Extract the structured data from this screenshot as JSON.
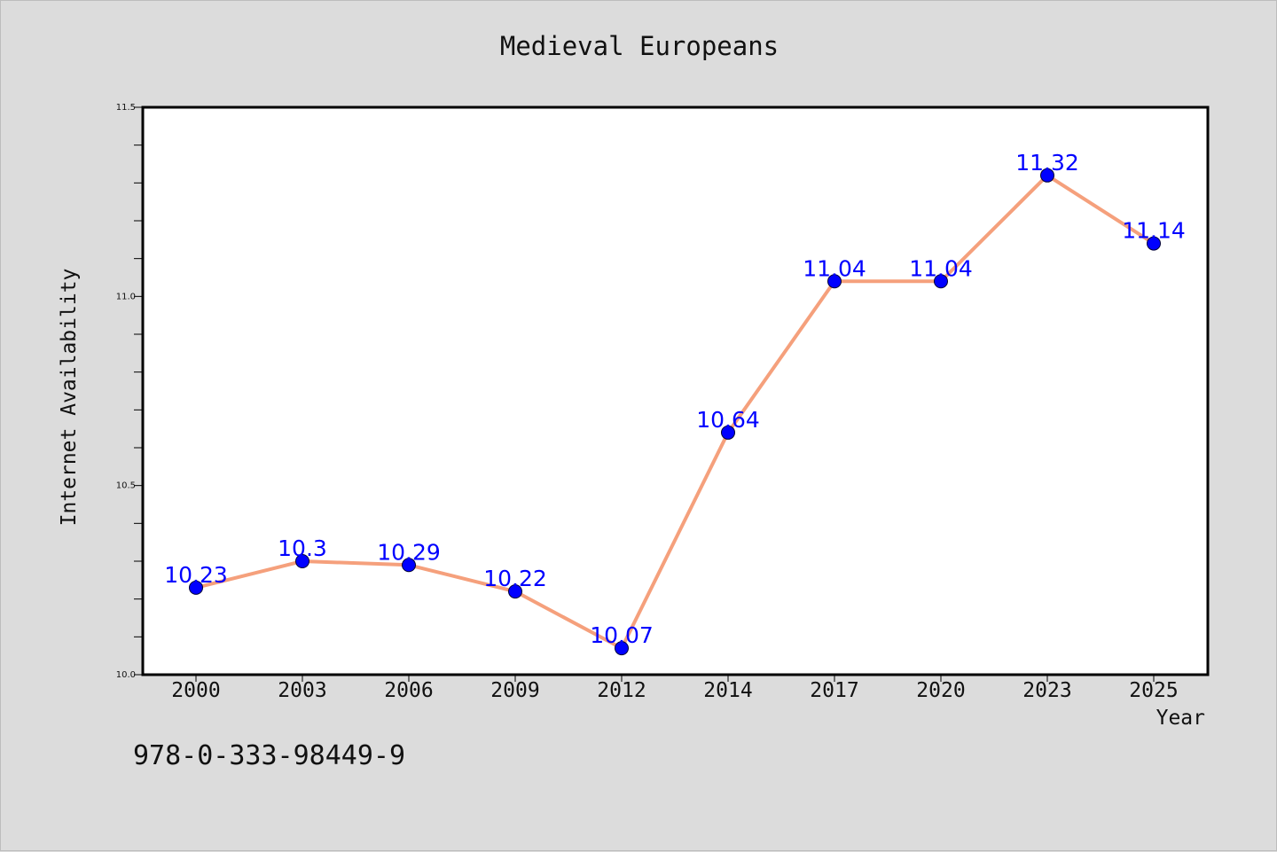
{
  "figure": {
    "title": "Medieval Europeans",
    "code": "978-0-333-98449-9"
  },
  "chart_data": {
    "type": "line",
    "title": "Medieval Europeans",
    "xlabel": "Year",
    "ylabel": "Internet Availability",
    "categories": [
      "2000",
      "2003",
      "2006",
      "2009",
      "2012",
      "2014",
      "2017",
      "2020",
      "2023",
      "2025"
    ],
    "series": [
      {
        "values": [
          10.23,
          10.3,
          10.29,
          10.22,
          10.07,
          10.64,
          11.04,
          11.04,
          11.32,
          11.14
        ],
        "data_labels": [
          "10.23",
          "10.3",
          "10.29",
          "10.22",
          "10.07",
          "10.64",
          "11.04",
          "11.04",
          "11.32",
          "11.14"
        ],
        "line_color": "#f5a07c",
        "marker_color": "#0000ff"
      }
    ],
    "ylim": [
      10.0,
      11.5
    ],
    "y_major_ticks": [
      10.0,
      10.5,
      11.0,
      11.5
    ],
    "y_tick_labels": [
      "10.0",
      "10.5",
      "11.0",
      "11.5"
    ],
    "y_minor_step": 0.1,
    "grid": false,
    "legend": "none",
    "colors": {
      "background": "#dcdcdc",
      "plot_area": "#ffffff",
      "axes": "#000000",
      "data_label": "#0000ff"
    }
  }
}
